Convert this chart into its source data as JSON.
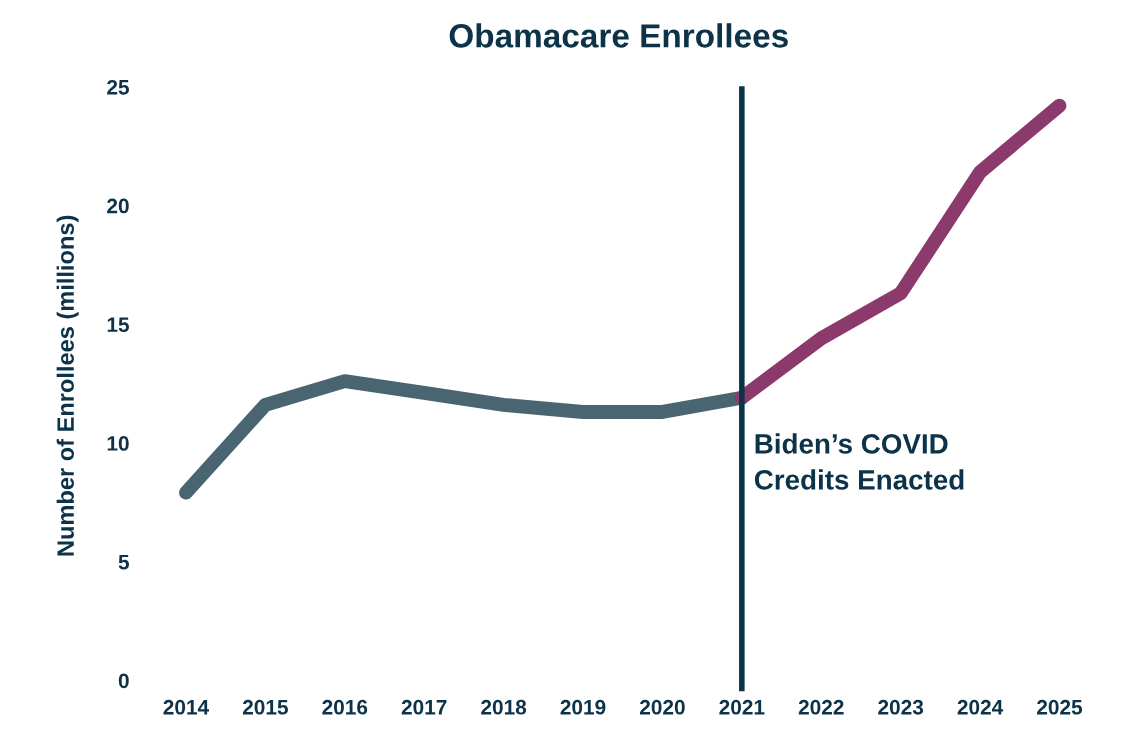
{
  "chart_data": {
    "type": "line",
    "title": "Obamacare Enrollees",
    "ylabel": "Number of Enrollees (millions)",
    "categories": [
      "2014",
      "2015",
      "2016",
      "2017",
      "2018",
      "2019",
      "2020",
      "2021",
      "2022",
      "2023",
      "2024",
      "2025"
    ],
    "series": [
      {
        "color": "#4a6572",
        "values": [
          8.0,
          11.7,
          12.7,
          12.2,
          11.7,
          11.4,
          11.4,
          12.0,
          null,
          null,
          null,
          null
        ]
      },
      {
        "color": "#8b3a6b",
        "values": [
          null,
          null,
          null,
          null,
          null,
          null,
          null,
          12.0,
          14.5,
          16.4,
          21.5,
          24.3
        ]
      }
    ],
    "ylim": [
      0,
      25
    ],
    "yticks": [
      0,
      5,
      10,
      15,
      20,
      25
    ],
    "grid": false,
    "legend": false,
    "line_style": "solid",
    "ref_lines": [
      {
        "axis": "x",
        "value": "2021",
        "label": "Biden’s COVID\nCredits Enacted",
        "color": "#0d3349",
        "line_style": "solid"
      }
    ]
  }
}
